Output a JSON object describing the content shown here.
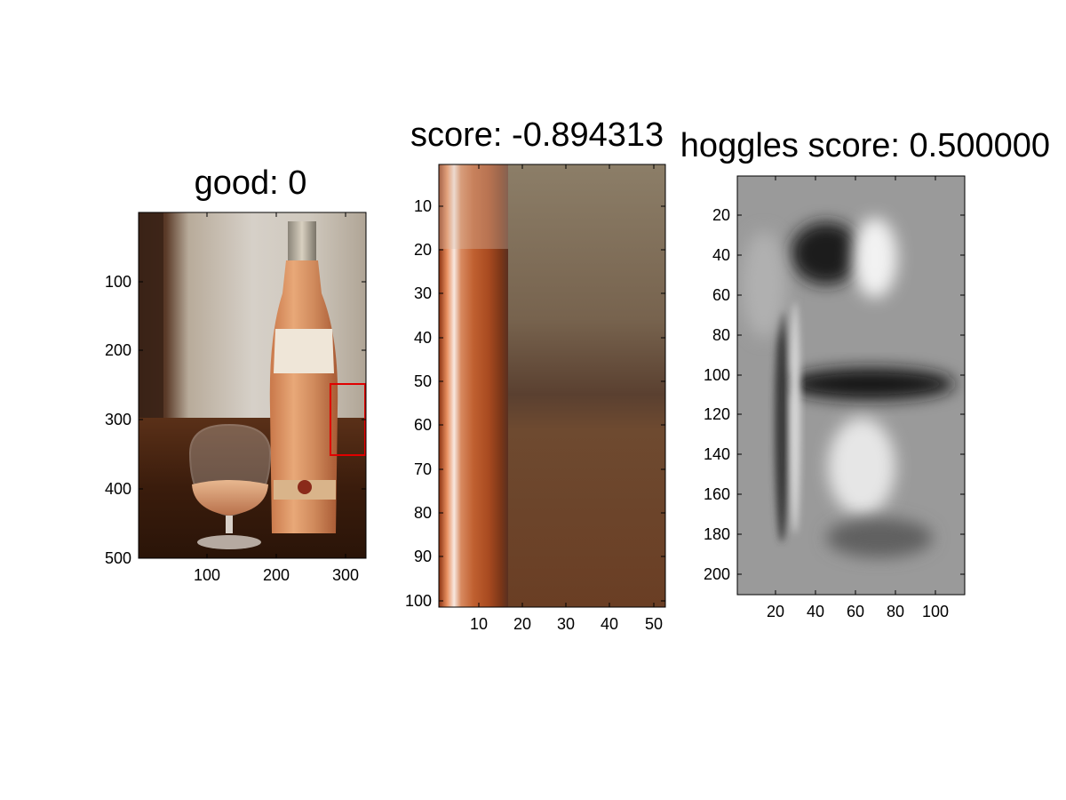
{
  "panels": [
    {
      "title": "good: 0",
      "image_description": "photo of wine bottle and glass",
      "box_color": "#e00000",
      "y_ticks": [
        "100",
        "200",
        "300",
        "400",
        "500"
      ],
      "x_ticks": [
        "100",
        "200",
        "300"
      ]
    },
    {
      "title": "score: -0.894313",
      "image_description": "zoomed crop of bottle edge",
      "y_ticks": [
        "10",
        "20",
        "30",
        "40",
        "50",
        "60",
        "70",
        "80",
        "90",
        "100"
      ],
      "x_ticks": [
        "10",
        "20",
        "30",
        "40",
        "50"
      ]
    },
    {
      "title": "hoggles score: 0.500000",
      "image_description": "grayscale HOG inversion",
      "y_ticks": [
        "20",
        "40",
        "60",
        "80",
        "100",
        "120",
        "140",
        "160",
        "180",
        "200"
      ],
      "x_ticks": [
        "20",
        "40",
        "60",
        "80",
        "100"
      ]
    }
  ]
}
